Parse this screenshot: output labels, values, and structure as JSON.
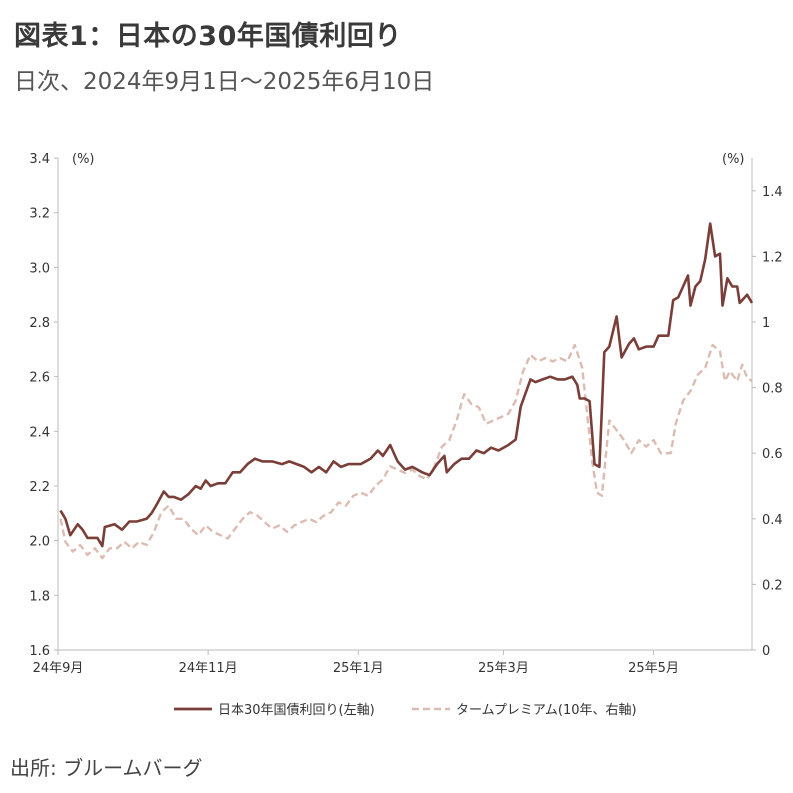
{
  "header": {
    "title": "図表1：日本の30年国債利回り",
    "subtitle": "日次、2024年9月1日～2025年6月10日"
  },
  "source": "出所: ブルームバーグ",
  "colors": {
    "jgb30": "#7a3e38",
    "term_premium": "#dcbcb2",
    "axis": "#bbbbbb"
  },
  "chart_data": {
    "type": "line",
    "x_range": [
      "2024-09-01",
      "2025-06-10"
    ],
    "x_ticks": [
      {
        "date": "2024-09-01",
        "label": "24年9月"
      },
      {
        "date": "2024-11-01",
        "label": "24年11月"
      },
      {
        "date": "2025-01-01",
        "label": "25年1月"
      },
      {
        "date": "2025-03-01",
        "label": "25年3月"
      },
      {
        "date": "2025-05-01",
        "label": "25年5月"
      }
    ],
    "y_left": {
      "unit": "(%)",
      "min": 1.6,
      "max": 3.4,
      "ticks": [
        "1.6",
        "1.8",
        "2.0",
        "2.2",
        "2.4",
        "2.6",
        "2.8",
        "3.0",
        "3.2",
        "3.4"
      ]
    },
    "y_right": {
      "unit": "(%)",
      "min": 0,
      "max": 1.5,
      "ticks": [
        "0",
        "0.2",
        "0.4",
        "0.6",
        "0.8",
        "1",
        "1.2",
        "1.4"
      ]
    },
    "grid": false,
    "legend_position": "bottom",
    "series": [
      {
        "name": "日本30年国債利回り(左軸)",
        "axis": "left",
        "style": "solid",
        "points": [
          [
            "2024-09-02",
            2.11
          ],
          [
            "2024-09-04",
            2.08
          ],
          [
            "2024-09-06",
            2.02
          ],
          [
            "2024-09-09",
            2.06
          ],
          [
            "2024-09-11",
            2.04
          ],
          [
            "2024-09-13",
            2.01
          ],
          [
            "2024-09-17",
            2.01
          ],
          [
            "2024-09-19",
            1.98
          ],
          [
            "2024-09-20",
            2.05
          ],
          [
            "2024-09-24",
            2.06
          ],
          [
            "2024-09-27",
            2.04
          ],
          [
            "2024-09-30",
            2.07
          ],
          [
            "2024-10-03",
            2.07
          ],
          [
            "2024-10-07",
            2.08
          ],
          [
            "2024-10-09",
            2.1
          ],
          [
            "2024-10-11",
            2.13
          ],
          [
            "2024-10-14",
            2.18
          ],
          [
            "2024-10-16",
            2.16
          ],
          [
            "2024-10-18",
            2.16
          ],
          [
            "2024-10-21",
            2.15
          ],
          [
            "2024-10-24",
            2.17
          ],
          [
            "2024-10-27",
            2.2
          ],
          [
            "2024-10-29",
            2.19
          ],
          [
            "2024-10-31",
            2.22
          ],
          [
            "2024-11-02",
            2.2
          ],
          [
            "2024-11-05",
            2.21
          ],
          [
            "2024-11-08",
            2.21
          ],
          [
            "2024-11-11",
            2.25
          ],
          [
            "2024-11-14",
            2.25
          ],
          [
            "2024-11-17",
            2.28
          ],
          [
            "2024-11-20",
            2.3
          ],
          [
            "2024-11-23",
            2.29
          ],
          [
            "2024-11-27",
            2.29
          ],
          [
            "2024-12-01",
            2.28
          ],
          [
            "2024-12-04",
            2.29
          ],
          [
            "2024-12-07",
            2.28
          ],
          [
            "2024-12-10",
            2.27
          ],
          [
            "2024-12-13",
            2.25
          ],
          [
            "2024-12-16",
            2.27
          ],
          [
            "2024-12-19",
            2.25
          ],
          [
            "2024-12-22",
            2.29
          ],
          [
            "2024-12-25",
            2.27
          ],
          [
            "2024-12-28",
            2.28
          ],
          [
            "2025-01-02",
            2.28
          ],
          [
            "2025-01-06",
            2.3
          ],
          [
            "2025-01-09",
            2.33
          ],
          [
            "2025-01-11",
            2.31
          ],
          [
            "2025-01-14",
            2.35
          ],
          [
            "2025-01-17",
            2.29
          ],
          [
            "2025-01-20",
            2.26
          ],
          [
            "2025-01-23",
            2.27
          ],
          [
            "2025-01-27",
            2.25
          ],
          [
            "2025-01-30",
            2.24
          ],
          [
            "2025-02-02",
            2.28
          ],
          [
            "2025-02-05",
            2.31
          ],
          [
            "2025-02-06",
            2.25
          ],
          [
            "2025-02-09",
            2.28
          ],
          [
            "2025-02-12",
            2.3
          ],
          [
            "2025-02-15",
            2.3
          ],
          [
            "2025-02-18",
            2.33
          ],
          [
            "2025-02-21",
            2.32
          ],
          [
            "2025-02-24",
            2.34
          ],
          [
            "2025-02-27",
            2.33
          ],
          [
            "2025-03-03",
            2.35
          ],
          [
            "2025-03-06",
            2.37
          ],
          [
            "2025-03-08",
            2.49
          ],
          [
            "2025-03-10",
            2.54
          ],
          [
            "2025-03-12",
            2.59
          ],
          [
            "2025-03-14",
            2.58
          ],
          [
            "2025-03-17",
            2.59
          ],
          [
            "2025-03-20",
            2.6
          ],
          [
            "2025-03-23",
            2.59
          ],
          [
            "2025-03-26",
            2.59
          ],
          [
            "2025-03-29",
            2.6
          ],
          [
            "2025-03-31",
            2.57
          ],
          [
            "2025-04-01",
            2.52
          ],
          [
            "2025-04-03",
            2.52
          ],
          [
            "2025-04-05",
            2.51
          ],
          [
            "2025-04-07",
            2.28
          ],
          [
            "2025-04-09",
            2.27
          ],
          [
            "2025-04-11",
            2.69
          ],
          [
            "2025-04-13",
            2.71
          ],
          [
            "2025-04-16",
            2.82
          ],
          [
            "2025-04-18",
            2.67
          ],
          [
            "2025-04-21",
            2.72
          ],
          [
            "2025-04-23",
            2.74
          ],
          [
            "2025-04-25",
            2.7
          ],
          [
            "2025-04-28",
            2.71
          ],
          [
            "2025-05-01",
            2.71
          ],
          [
            "2025-05-03",
            2.75
          ],
          [
            "2025-05-07",
            2.75
          ],
          [
            "2025-05-09",
            2.88
          ],
          [
            "2025-05-11",
            2.89
          ],
          [
            "2025-05-13",
            2.93
          ],
          [
            "2025-05-15",
            2.97
          ],
          [
            "2025-05-16",
            2.86
          ],
          [
            "2025-05-18",
            2.93
          ],
          [
            "2025-05-20",
            2.95
          ],
          [
            "2025-05-22",
            3.03
          ],
          [
            "2025-05-24",
            3.16
          ],
          [
            "2025-05-26",
            3.04
          ],
          [
            "2025-05-28",
            3.05
          ],
          [
            "2025-05-29",
            2.86
          ],
          [
            "2025-05-31",
            2.96
          ],
          [
            "2025-06-02",
            2.93
          ],
          [
            "2025-06-04",
            2.93
          ],
          [
            "2025-06-05",
            2.87
          ],
          [
            "2025-06-08",
            2.9
          ],
          [
            "2025-06-10",
            2.87
          ]
        ]
      },
      {
        "name": "タームプレミアム(10年、右軸)",
        "axis": "right",
        "style": "dashed",
        "points": [
          [
            "2024-09-02",
            0.4
          ],
          [
            "2024-09-04",
            0.33
          ],
          [
            "2024-09-07",
            0.3
          ],
          [
            "2024-09-10",
            0.32
          ],
          [
            "2024-09-13",
            0.29
          ],
          [
            "2024-09-16",
            0.31
          ],
          [
            "2024-09-19",
            0.28
          ],
          [
            "2024-09-22",
            0.31
          ],
          [
            "2024-09-25",
            0.31
          ],
          [
            "2024-09-28",
            0.33
          ],
          [
            "2024-10-01",
            0.31
          ],
          [
            "2024-10-04",
            0.33
          ],
          [
            "2024-10-07",
            0.32
          ],
          [
            "2024-10-10",
            0.36
          ],
          [
            "2024-10-13",
            0.42
          ],
          [
            "2024-10-16",
            0.44
          ],
          [
            "2024-10-19",
            0.4
          ],
          [
            "2024-10-22",
            0.4
          ],
          [
            "2024-10-25",
            0.37
          ],
          [
            "2024-10-28",
            0.35
          ],
          [
            "2024-10-31",
            0.38
          ],
          [
            "2024-11-03",
            0.36
          ],
          [
            "2024-11-06",
            0.35
          ],
          [
            "2024-11-09",
            0.34
          ],
          [
            "2024-11-12",
            0.37
          ],
          [
            "2024-11-15",
            0.4
          ],
          [
            "2024-11-18",
            0.42
          ],
          [
            "2024-11-21",
            0.41
          ],
          [
            "2024-11-24",
            0.39
          ],
          [
            "2024-11-27",
            0.37
          ],
          [
            "2024-11-30",
            0.38
          ],
          [
            "2024-12-03",
            0.36
          ],
          [
            "2024-12-06",
            0.38
          ],
          [
            "2024-12-09",
            0.39
          ],
          [
            "2024-12-12",
            0.4
          ],
          [
            "2024-12-15",
            0.39
          ],
          [
            "2024-12-18",
            0.41
          ],
          [
            "2024-12-21",
            0.42
          ],
          [
            "2024-12-24",
            0.45
          ],
          [
            "2024-12-27",
            0.44
          ],
          [
            "2024-12-30",
            0.47
          ],
          [
            "2025-01-02",
            0.48
          ],
          [
            "2025-01-05",
            0.47
          ],
          [
            "2025-01-08",
            0.5
          ],
          [
            "2025-01-11",
            0.52
          ],
          [
            "2025-01-14",
            0.56
          ],
          [
            "2025-01-17",
            0.55
          ],
          [
            "2025-01-20",
            0.54
          ],
          [
            "2025-01-23",
            0.55
          ],
          [
            "2025-01-26",
            0.53
          ],
          [
            "2025-01-29",
            0.52
          ],
          [
            "2025-02-01",
            0.56
          ],
          [
            "2025-02-04",
            0.62
          ],
          [
            "2025-02-07",
            0.64
          ],
          [
            "2025-02-10",
            0.7
          ],
          [
            "2025-02-13",
            0.78
          ],
          [
            "2025-02-16",
            0.75
          ],
          [
            "2025-02-19",
            0.74
          ],
          [
            "2025-02-22",
            0.69
          ],
          [
            "2025-02-25",
            0.7
          ],
          [
            "2025-02-28",
            0.71
          ],
          [
            "2025-03-03",
            0.72
          ],
          [
            "2025-03-06",
            0.76
          ],
          [
            "2025-03-09",
            0.85
          ],
          [
            "2025-03-12",
            0.9
          ],
          [
            "2025-03-15",
            0.88
          ],
          [
            "2025-03-18",
            0.89
          ],
          [
            "2025-03-21",
            0.88
          ],
          [
            "2025-03-24",
            0.89
          ],
          [
            "2025-03-27",
            0.88
          ],
          [
            "2025-03-30",
            0.93
          ],
          [
            "2025-04-02",
            0.86
          ],
          [
            "2025-04-04",
            0.72
          ],
          [
            "2025-04-06",
            0.58
          ],
          [
            "2025-04-08",
            0.48
          ],
          [
            "2025-04-10",
            0.47
          ],
          [
            "2025-04-13",
            0.7
          ],
          [
            "2025-04-16",
            0.67
          ],
          [
            "2025-04-19",
            0.64
          ],
          [
            "2025-04-22",
            0.6
          ],
          [
            "2025-04-25",
            0.64
          ],
          [
            "2025-04-28",
            0.62
          ],
          [
            "2025-05-01",
            0.64
          ],
          [
            "2025-05-04",
            0.6
          ],
          [
            "2025-05-08",
            0.6
          ],
          [
            "2025-05-10",
            0.69
          ],
          [
            "2025-05-13",
            0.76
          ],
          [
            "2025-05-16",
            0.79
          ],
          [
            "2025-05-19",
            0.84
          ],
          [
            "2025-05-22",
            0.86
          ],
          [
            "2025-05-25",
            0.93
          ],
          [
            "2025-05-28",
            0.91
          ],
          [
            "2025-05-30",
            0.82
          ],
          [
            "2025-06-01",
            0.85
          ],
          [
            "2025-06-04",
            0.82
          ],
          [
            "2025-06-06",
            0.87
          ],
          [
            "2025-06-08",
            0.83
          ],
          [
            "2025-06-10",
            0.82
          ]
        ]
      }
    ]
  }
}
